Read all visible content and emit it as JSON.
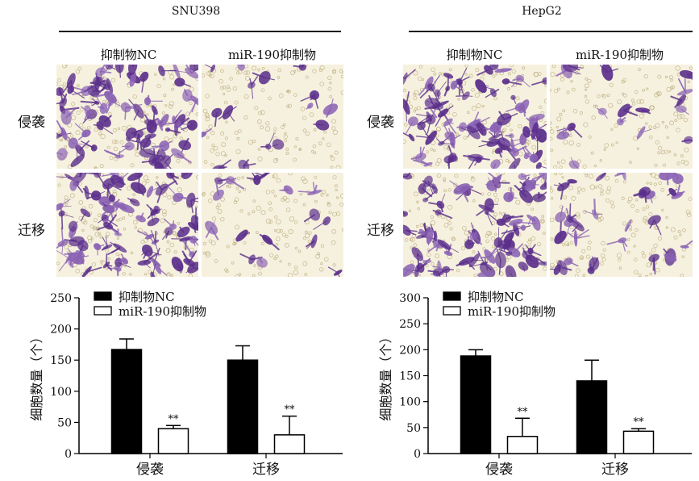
{
  "figure": {
    "panels": [
      {
        "cell_line": "SNU398",
        "column_labels": [
          "抑制物NC",
          "miR-190抑制物"
        ],
        "row_labels": [
          "侵袭",
          "迁移"
        ]
      },
      {
        "cell_line": "HepG2",
        "column_labels": [
          "抑制物NC",
          "miR-190抑制物"
        ],
        "row_labels": [
          "侵袭",
          "迁移"
        ]
      }
    ],
    "micrograph_style": {
      "background": "#f6f1de",
      "cell_dense": "#5b2f8c",
      "cell_light": "#8a62b4",
      "pore": "#b8a77a"
    }
  },
  "chart_data": [
    {
      "type": "bar",
      "panel": "SNU398",
      "categories": [
        "侵袭",
        "迁移"
      ],
      "ylabel": "细胞数量（个）",
      "ylim": [
        0,
        250
      ],
      "yticks": [
        0,
        50,
        100,
        150,
        200,
        250
      ],
      "legend_placement": "top-left",
      "series": [
        {
          "name": "抑制物NC",
          "color": "#000000",
          "fill": "solid",
          "values": [
            167,
            150
          ],
          "error": [
            17,
            23
          ],
          "significance": [
            "",
            ""
          ]
        },
        {
          "name": "miR-190抑制物",
          "color": "#000000",
          "fill": "open",
          "values": [
            40,
            30
          ],
          "error": [
            5,
            30
          ],
          "significance": [
            "**",
            "**"
          ]
        }
      ]
    },
    {
      "type": "bar",
      "panel": "HepG2",
      "categories": [
        "侵袭",
        "迁移"
      ],
      "ylabel": "细胞数量（个）",
      "ylim": [
        0,
        300
      ],
      "yticks": [
        0,
        50,
        100,
        150,
        200,
        250,
        300
      ],
      "legend_placement": "top-left",
      "series": [
        {
          "name": "抑制物NC",
          "color": "#000000",
          "fill": "solid",
          "values": [
            188,
            140
          ],
          "error": [
            12,
            40
          ],
          "significance": [
            "",
            ""
          ]
        },
        {
          "name": "miR-190抑制物",
          "color": "#000000",
          "fill": "open",
          "values": [
            33,
            43
          ],
          "error": [
            35,
            5
          ],
          "significance": [
            "**",
            "**"
          ]
        }
      ]
    }
  ]
}
